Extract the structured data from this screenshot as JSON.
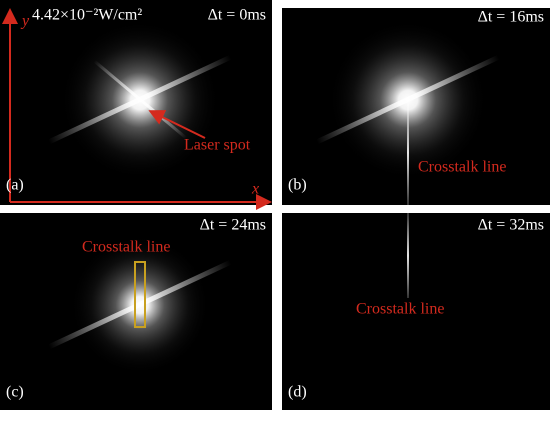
{
  "panels": [
    {
      "label": "(a)",
      "time": "Δt = 0ms",
      "intensity": "4.42×10⁻²W/cm²",
      "annotation": "Laser spot",
      "x_axis": "x",
      "y_axis": "y"
    },
    {
      "label": "(b)",
      "time": "Δt = 16ms",
      "annotation": "Crosstalk line"
    },
    {
      "label": "(c)",
      "time": "Δt = 24ms",
      "annotation": "Crosstalk line"
    },
    {
      "label": "(d)",
      "time": "Δt = 32ms",
      "annotation": "Crosstalk line"
    }
  ]
}
